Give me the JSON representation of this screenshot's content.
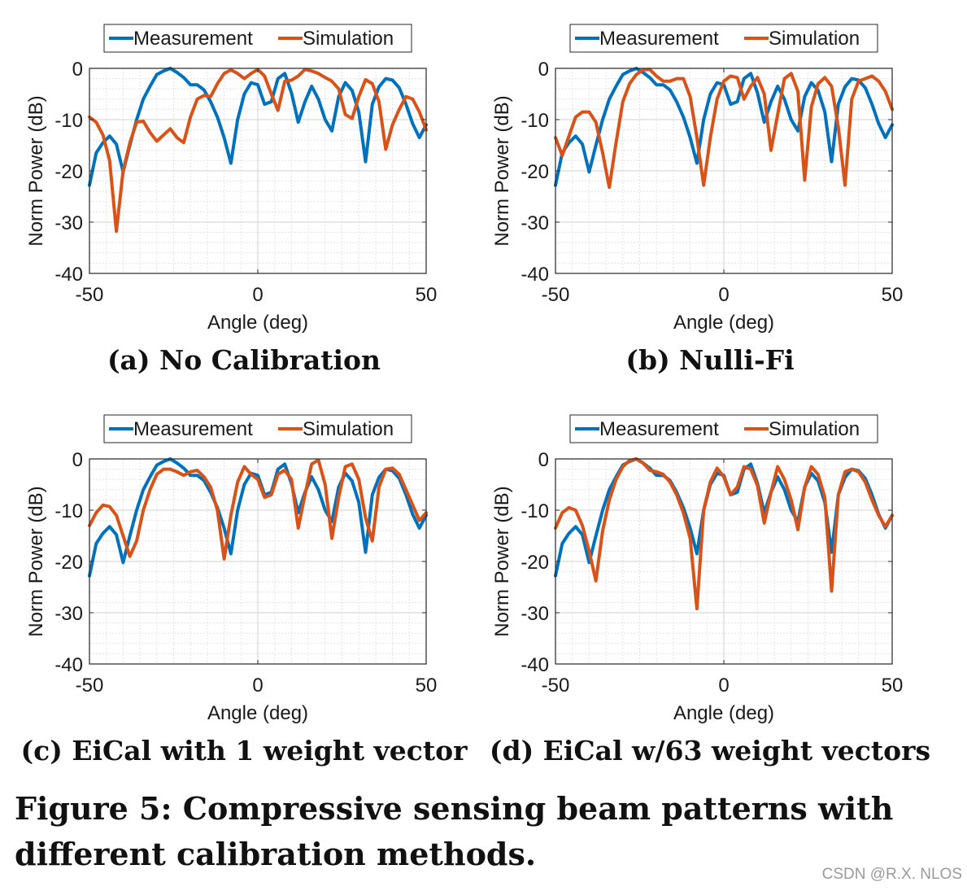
{
  "figure": {
    "caption": "Figure 5: Compressive sensing beam patterns with different calibration methods.",
    "watermark": "CSDN @R.X. NLOS"
  },
  "colors": {
    "measurement": "#0072BD",
    "simulation": "#D95319"
  },
  "chart_data": [
    {
      "type": "line",
      "subcaption": "(a) No Calibration",
      "xlabel": "Angle (deg)",
      "ylabel": "Norm Power (dB)",
      "xlim": [
        -50,
        50
      ],
      "ylim": [
        -40,
        0
      ],
      "xticks": [
        "-50",
        "0",
        "50"
      ],
      "yticks": [
        "0",
        "-10",
        "-20",
        "-30",
        "-40"
      ],
      "grid": true,
      "legend_position": "top-center",
      "x": [
        -50,
        -48,
        -46,
        -44,
        -42,
        -40,
        -38,
        -36,
        -34,
        -32,
        -30,
        -28,
        -26,
        -24,
        -22,
        -20,
        -18,
        -16,
        -14,
        -12,
        -10,
        -8,
        -6,
        -4,
        -2,
        0,
        2,
        4,
        6,
        8,
        10,
        12,
        14,
        16,
        18,
        20,
        22,
        24,
        26,
        28,
        30,
        32,
        34,
        36,
        38,
        40,
        42,
        44,
        46,
        48,
        50
      ],
      "series": [
        {
          "name": "Measurement",
          "values": [
            -22.8,
            -16.5,
            -14.5,
            -13.2,
            -14.8,
            -20.2,
            -15,
            -10,
            -6,
            -3.5,
            -1.2,
            -0.5,
            0,
            -0.8,
            -1.8,
            -3.2,
            -3.2,
            -4.2,
            -6.5,
            -9.5,
            -13.5,
            -18.5,
            -10,
            -5,
            -2.8,
            -3.2,
            -7,
            -6.5,
            -2,
            -1,
            -4.8,
            -10.5,
            -6.5,
            -3.5,
            -6,
            -10,
            -12.2,
            -5.5,
            -2.8,
            -4.3,
            -8.5,
            -18.2,
            -7,
            -3.6,
            -2,
            -2.3,
            -3.8,
            -7,
            -10.8,
            -13.5,
            -11
          ]
        },
        {
          "name": "Simulation",
          "values": [
            -9.5,
            -10.5,
            -13,
            -18,
            -31.8,
            -20,
            -14.5,
            -10.5,
            -10.3,
            -12.5,
            -14.2,
            -13,
            -11.8,
            -13.5,
            -14.5,
            -9.5,
            -6,
            -5.3,
            -5.5,
            -3,
            -1,
            -0.3,
            -1,
            -2,
            -1,
            -0.2,
            -1.5,
            -5,
            -8.2,
            -2.5,
            -2.3,
            -1.5,
            -0.2,
            -0.5,
            -1,
            -1.8,
            -2.5,
            -4,
            -9,
            -9.8,
            -5.5,
            -2.2,
            -3,
            -6.5,
            -15.8,
            -11,
            -8,
            -5.5,
            -6,
            -8.5,
            -12
          ]
        }
      ]
    },
    {
      "type": "line",
      "subcaption": "(b) Nulli-Fi",
      "xlabel": "Angle (deg)",
      "ylabel": "Norm Power (dB)",
      "xlim": [
        -50,
        50
      ],
      "ylim": [
        -40,
        0
      ],
      "xticks": [
        "-50",
        "0",
        "50"
      ],
      "yticks": [
        "0",
        "-10",
        "-20",
        "-30",
        "-40"
      ],
      "grid": true,
      "legend_position": "top-center",
      "x": [
        -50,
        -48,
        -46,
        -44,
        -42,
        -40,
        -38,
        -36,
        -34,
        -32,
        -30,
        -28,
        -26,
        -24,
        -22,
        -20,
        -18,
        -16,
        -14,
        -12,
        -10,
        -8,
        -6,
        -4,
        -2,
        0,
        2,
        4,
        6,
        8,
        10,
        12,
        14,
        16,
        18,
        20,
        22,
        24,
        26,
        28,
        30,
        32,
        34,
        36,
        38,
        40,
        42,
        44,
        46,
        48,
        50
      ],
      "series": [
        {
          "name": "Measurement",
          "values": [
            -22.8,
            -16.5,
            -14.5,
            -13.2,
            -14.8,
            -20.2,
            -15,
            -10,
            -6,
            -3.5,
            -1.2,
            -0.5,
            0,
            -0.8,
            -1.8,
            -3.2,
            -3.2,
            -4.2,
            -6.5,
            -9.5,
            -13.5,
            -18.5,
            -10,
            -5,
            -2.8,
            -3.2,
            -7,
            -6.5,
            -2,
            -1,
            -4.8,
            -10.5,
            -6.5,
            -3.5,
            -6,
            -10,
            -12.2,
            -5.5,
            -2.8,
            -4.3,
            -8.5,
            -18.2,
            -7,
            -3.6,
            -2,
            -2.3,
            -3.8,
            -7,
            -10.8,
            -13.5,
            -11
          ]
        },
        {
          "name": "Simulation",
          "values": [
            -13.5,
            -17,
            -13.2,
            -9.5,
            -8.5,
            -8.5,
            -10.5,
            -16.5,
            -23.2,
            -14.5,
            -6.5,
            -3,
            -1.2,
            -0.3,
            -0.2,
            -1.5,
            -2.5,
            -2.5,
            -2,
            -2,
            -5.5,
            -13.5,
            -22.8,
            -13.5,
            -6,
            -2.5,
            -1.5,
            -1.8,
            -6,
            -3.5,
            -1.8,
            -5,
            -16,
            -9,
            -2,
            -1,
            -4.5,
            -21.8,
            -7.5,
            -3,
            -1.8,
            -3.5,
            -11.5,
            -22.8,
            -6,
            -2.5,
            -2,
            -1.5,
            -2.5,
            -4.5,
            -8
          ]
        }
      ]
    },
    {
      "type": "line",
      "subcaption": "(c) EiCal with 1 weight vector",
      "xlabel": "Angle (deg)",
      "ylabel": "Norm Power (dB)",
      "xlim": [
        -50,
        50
      ],
      "ylim": [
        -40,
        0
      ],
      "xticks": [
        "-50",
        "0",
        "50"
      ],
      "yticks": [
        "0",
        "-10",
        "-20",
        "-30",
        "-40"
      ],
      "grid": true,
      "legend_position": "top-center",
      "x": [
        -50,
        -48,
        -46,
        -44,
        -42,
        -40,
        -38,
        -36,
        -34,
        -32,
        -30,
        -28,
        -26,
        -24,
        -22,
        -20,
        -18,
        -16,
        -14,
        -12,
        -10,
        -8,
        -6,
        -4,
        -2,
        0,
        2,
        4,
        6,
        8,
        10,
        12,
        14,
        16,
        18,
        20,
        22,
        24,
        26,
        28,
        30,
        32,
        34,
        36,
        38,
        40,
        42,
        44,
        46,
        48,
        50
      ],
      "series": [
        {
          "name": "Measurement",
          "values": [
            -22.8,
            -16.5,
            -14.5,
            -13.2,
            -14.8,
            -20.2,
            -15,
            -10,
            -6,
            -3.5,
            -1.2,
            -0.5,
            0,
            -0.8,
            -1.8,
            -3.2,
            -3.2,
            -4.2,
            -6.5,
            -9.5,
            -13.5,
            -18.5,
            -10,
            -5,
            -2.8,
            -3.2,
            -7,
            -6.5,
            -2,
            -1,
            -4.8,
            -10.5,
            -6.5,
            -3.5,
            -6,
            -10,
            -12.2,
            -5.5,
            -2.8,
            -4.3,
            -8.5,
            -18.2,
            -7,
            -3.6,
            -2,
            -2.3,
            -3.8,
            -7,
            -10.8,
            -13.5,
            -11
          ]
        },
        {
          "name": "Simulation",
          "values": [
            -13,
            -10.5,
            -9,
            -9.3,
            -11,
            -15,
            -19,
            -16,
            -10,
            -6,
            -3,
            -2,
            -2,
            -2.5,
            -3.2,
            -2.5,
            -2.2,
            -3.5,
            -5.5,
            -10,
            -19.5,
            -11,
            -4.5,
            -1.5,
            -3,
            -4,
            -7.5,
            -7,
            -3,
            -2.2,
            -4,
            -13.5,
            -7,
            -1,
            -0.2,
            -5,
            -15.5,
            -7.5,
            -1.5,
            -1,
            -4,
            -11.5,
            -16,
            -5.5,
            -2,
            -1.8,
            -3,
            -6,
            -9,
            -12,
            -10.5
          ]
        }
      ]
    },
    {
      "type": "line",
      "subcaption": "(d) EiCal w/63 weight vectors",
      "xlabel": "Angle (deg)",
      "ylabel": "Norm Power (dB)",
      "xlim": [
        -50,
        50
      ],
      "ylim": [
        -40,
        0
      ],
      "xticks": [
        "-50",
        "0",
        "50"
      ],
      "yticks": [
        "0",
        "-10",
        "-20",
        "-30",
        "-40"
      ],
      "grid": true,
      "legend_position": "top-center",
      "x": [
        -50,
        -48,
        -46,
        -44,
        -42,
        -40,
        -38,
        -36,
        -34,
        -32,
        -30,
        -28,
        -26,
        -24,
        -22,
        -20,
        -18,
        -16,
        -14,
        -12,
        -10,
        -8,
        -6,
        -4,
        -2,
        0,
        2,
        4,
        6,
        8,
        10,
        12,
        14,
        16,
        18,
        20,
        22,
        24,
        26,
        28,
        30,
        32,
        34,
        36,
        38,
        40,
        42,
        44,
        46,
        48,
        50
      ],
      "series": [
        {
          "name": "Measurement",
          "values": [
            -22.8,
            -16.5,
            -14.5,
            -13.2,
            -14.8,
            -20.2,
            -15,
            -10,
            -6,
            -3.5,
            -1.2,
            -0.5,
            0,
            -0.8,
            -1.8,
            -3.2,
            -3.2,
            -4.2,
            -6.5,
            -9.5,
            -13.5,
            -18.5,
            -10,
            -5,
            -2.8,
            -3.2,
            -7,
            -6.5,
            -2,
            -1,
            -4.8,
            -10.5,
            -6.5,
            -3.5,
            -6,
            -10,
            -12.2,
            -5.5,
            -2.8,
            -4.3,
            -8.5,
            -18.2,
            -7,
            -3.6,
            -2,
            -2.3,
            -3.8,
            -7,
            -10.8,
            -13.5,
            -11
          ]
        },
        {
          "name": "Simulation",
          "values": [
            -13.5,
            -10.5,
            -9.5,
            -10,
            -13,
            -18,
            -23.8,
            -14,
            -8,
            -4,
            -1.5,
            -0.3,
            0,
            -0.8,
            -2.2,
            -2.5,
            -3,
            -4.5,
            -7,
            -10.5,
            -15.5,
            -29.2,
            -10,
            -4.5,
            -1.8,
            -3.5,
            -7,
            -5.5,
            -1.5,
            -2,
            -5.2,
            -12.5,
            -6.5,
            -1.5,
            -4,
            -8,
            -13.8,
            -5.5,
            -1.5,
            -3,
            -7.5,
            -25.8,
            -7,
            -2.5,
            -2,
            -2.5,
            -4.5,
            -8,
            -11,
            -13.2,
            -11
          ]
        }
      ]
    }
  ]
}
